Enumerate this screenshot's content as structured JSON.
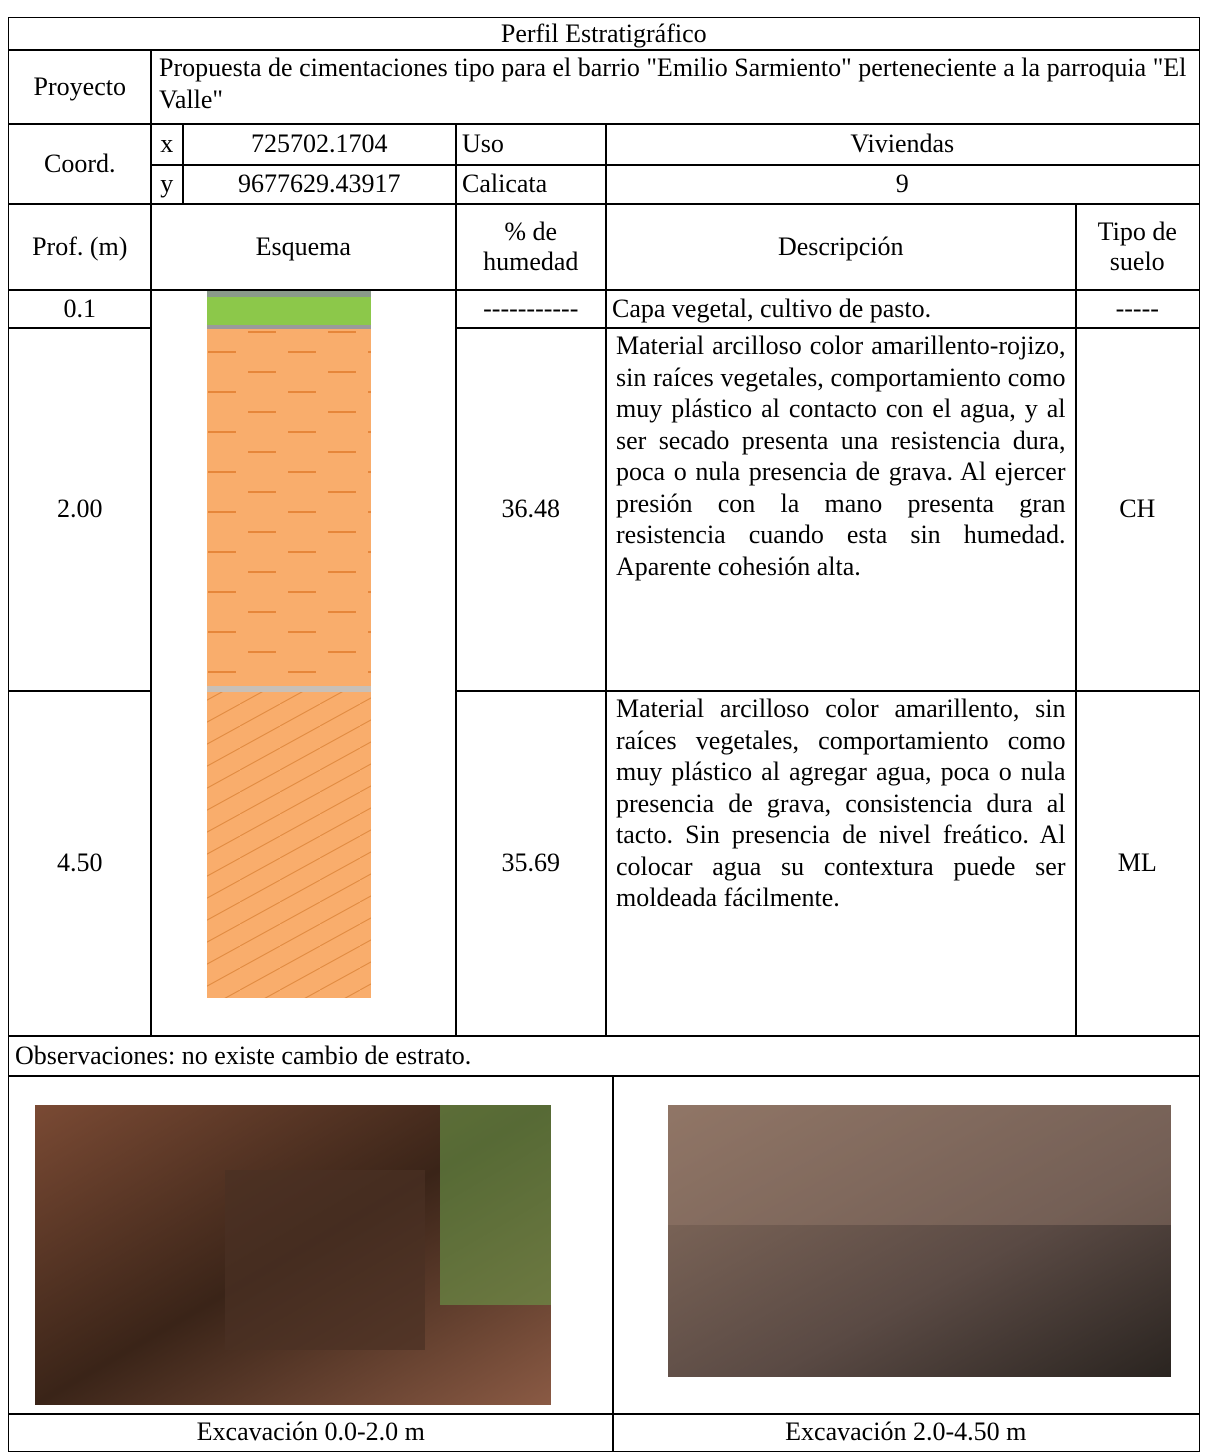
{
  "title": "Perfil Estratigráfico",
  "project": {
    "label": "Proyecto",
    "text": "Propuesta de cimentaciones tipo para el barrio \"Emilio Sarmiento\" perteneciente a la parroquia \"El Valle\""
  },
  "coords": {
    "label": "Coord.",
    "x_label": "x",
    "x": "725702.1704",
    "y_label": "y",
    "y": "9677629.43917"
  },
  "use": {
    "label": "Uso",
    "value": "Viviendas"
  },
  "pit": {
    "label": "Calicata",
    "value": "9"
  },
  "headers": {
    "depth": "Prof. (m)",
    "scheme": "Esquema",
    "humidity": "% de humedad",
    "description": "Descripción",
    "soil": "Tipo de suelo"
  },
  "layers": [
    {
      "depth": "0.1",
      "humidity": "-----------",
      "description": "Capa vegetal, cultivo de pasto.",
      "soil": "-----"
    },
    {
      "depth": "2.00",
      "humidity": "36.48",
      "description": "Material arcilloso color amarillento-rojizo, sin raíces vegetales, comportamiento como muy plástico al contacto con el agua, y al ser secado presenta una resistencia dura, poca o nula presencia de grava. Al ejercer presión con la mano presenta gran resistencia cuando esta sin humedad. Aparente cohesión alta.",
      "soil": "CH"
    },
    {
      "depth": "4.50",
      "humidity": "35.69",
      "description": "Material arcilloso color amarillento, sin raíces vegetales, comportamiento como muy plástico al agregar agua, poca o nula presencia de grava, consistencia dura al tacto. Sin presencia de nivel freático. Al colocar agua su contextura puede ser moldeada fácilmente.",
      "soil": "ML"
    }
  ],
  "observations": "Observaciones: no existe cambio de estrato.",
  "photos": [
    {
      "caption": "Excavación 0.0-2.0 m"
    },
    {
      "caption": "Excavación 2.0-4.50 m"
    }
  ]
}
